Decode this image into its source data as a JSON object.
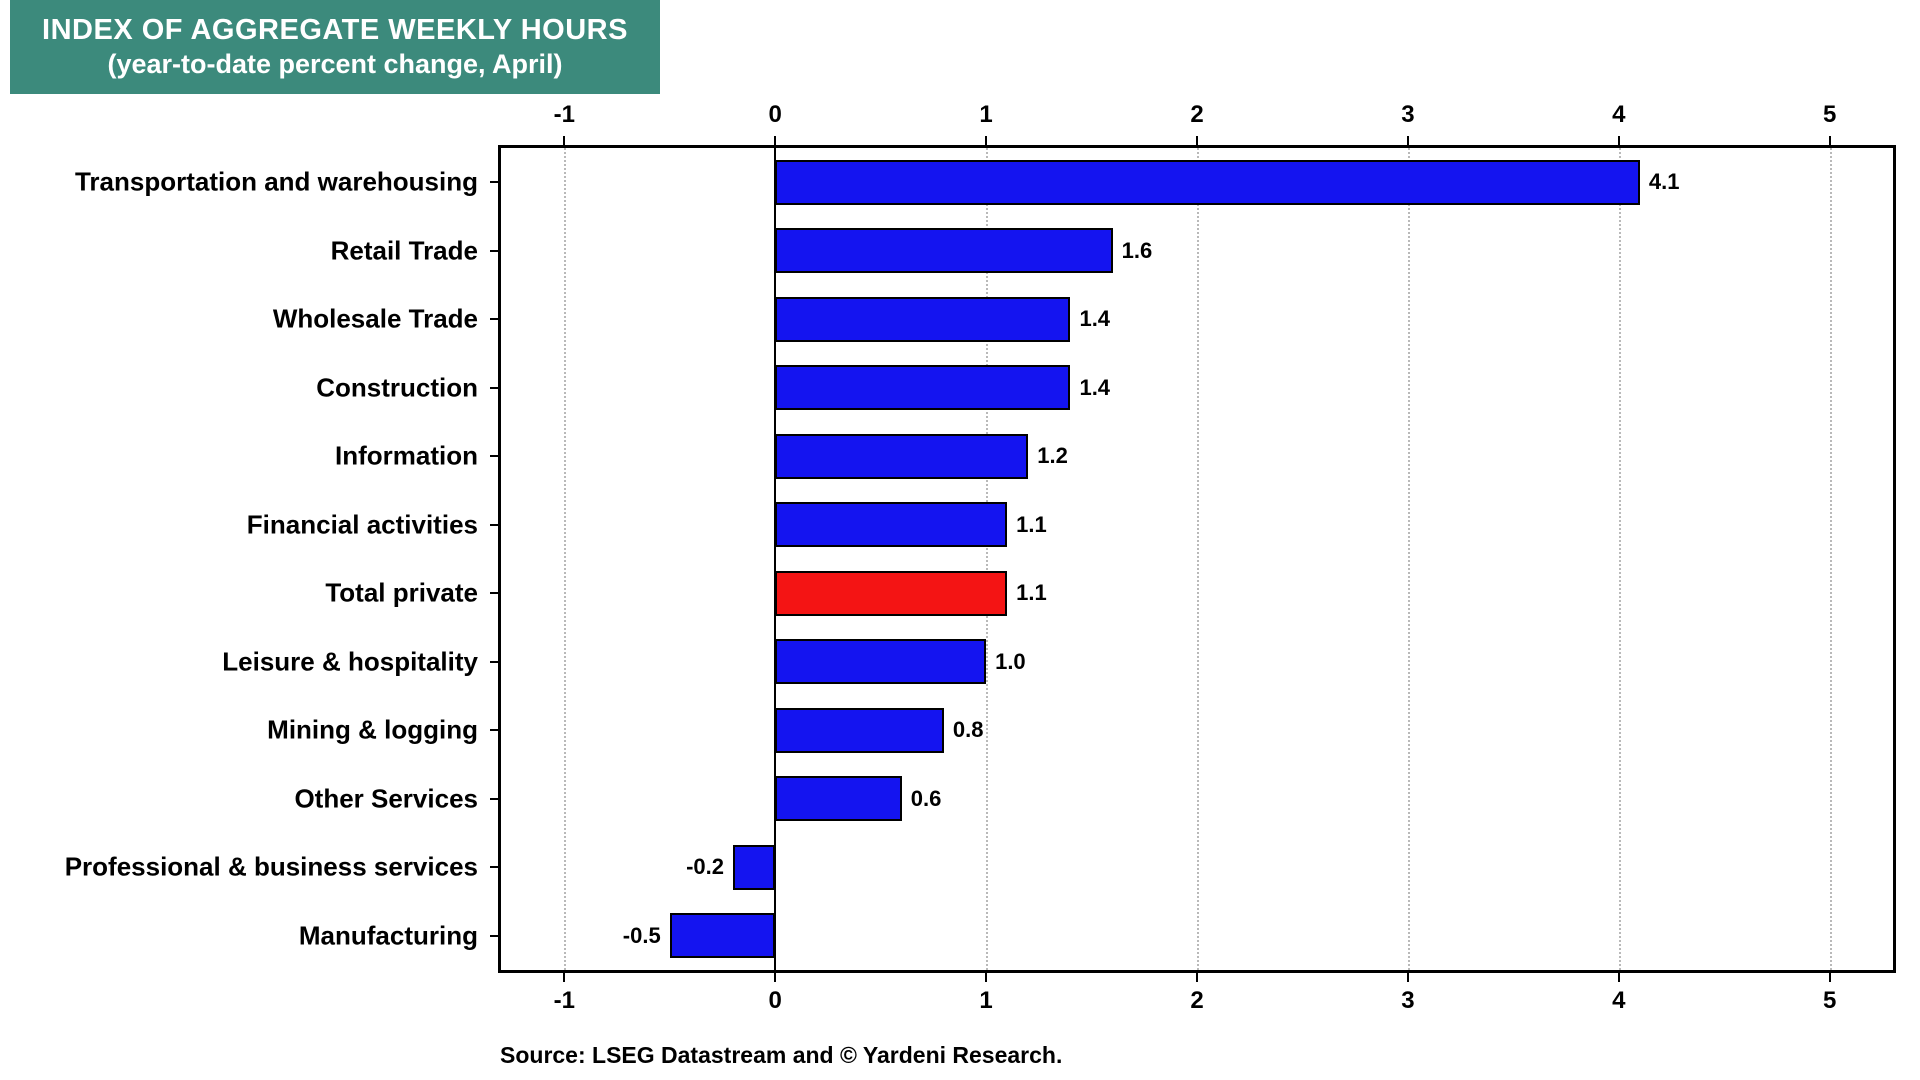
{
  "header": {
    "title_line1": "INDEX OF AGGREGATE WEEKLY HOURS",
    "title_line2": "(year-to-date percent change, April)",
    "bg_color": "#3C8A7C",
    "text_color": "#FFFFFF"
  },
  "source": {
    "text": "Source: LSEG Datastream and © Yardeni Research."
  },
  "chart_data": {
    "type": "bar",
    "orientation": "horizontal",
    "title": "INDEX OF AGGREGATE WEEKLY HOURS (year-to-date percent change, April)",
    "categories": [
      "Transportation and warehousing",
      "Retail Trade",
      "Wholesale Trade",
      "Construction",
      "Information",
      "Financial activities",
      "Total private",
      "Leisure & hospitality",
      "Mining & logging",
      "Other Services",
      "Professional & business services",
      "Manufacturing"
    ],
    "values": [
      4.1,
      1.6,
      1.4,
      1.4,
      1.2,
      1.1,
      1.1,
      1.0,
      0.8,
      0.6,
      -0.2,
      -0.5
    ],
    "value_labels": [
      "4.1",
      "1.6",
      "1.4",
      "1.4",
      "1.2",
      "1.1",
      "1.1",
      "1.0",
      "0.8",
      "0.6",
      "-0.2",
      "-0.5"
    ],
    "highlight_index": 6,
    "highlight_category": "Total private",
    "bar_color": "#1414F0",
    "highlight_color": "#F41414",
    "bar_border_color": "#000000",
    "xticks": [
      -1,
      0,
      1,
      2,
      3,
      4,
      5
    ],
    "xlim": [
      -1.3,
      5.3
    ],
    "grid": "vertical dotted gridlines at integer ticks, solid zero line",
    "legend": "none",
    "xlabel": "",
    "ylabel": ""
  }
}
